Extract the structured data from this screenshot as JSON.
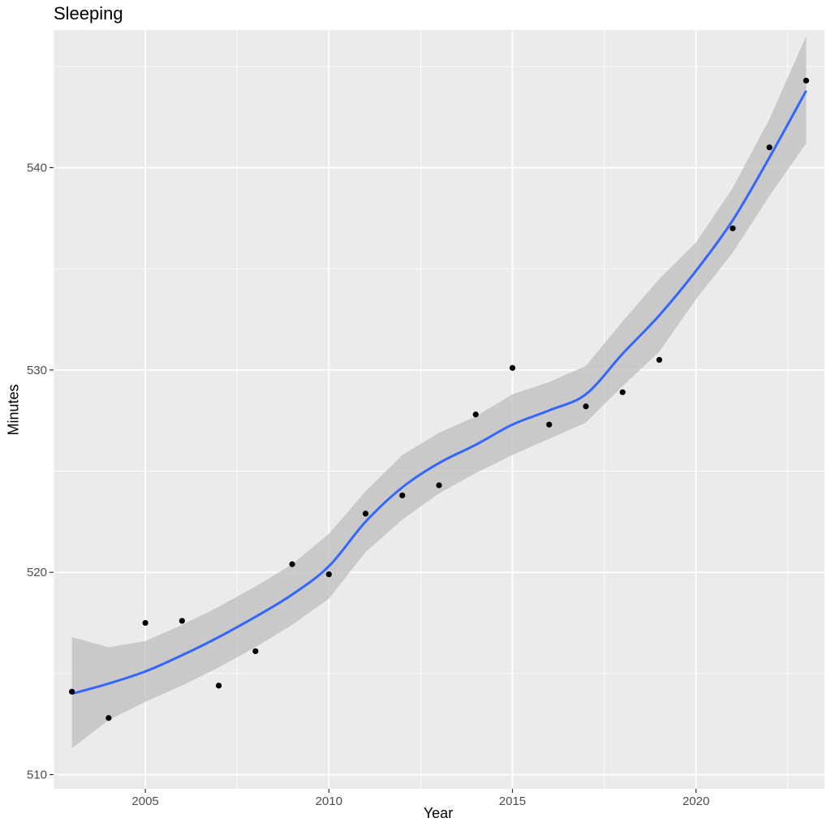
{
  "chart_data": {
    "type": "scatter",
    "title": "Sleeping",
    "xlabel": "Year",
    "ylabel": "Minutes",
    "xlim": [
      2002.5,
      2023.5
    ],
    "ylim": [
      509.3,
      546.8
    ],
    "x_ticks": [
      2005,
      2010,
      2015,
      2020
    ],
    "y_ticks": [
      510,
      520,
      530,
      540
    ],
    "grid": true,
    "legend": "none",
    "colors": {
      "panel": "#ebebeb",
      "grid": "#ffffff",
      "points": "#000000",
      "smooth_line": "#3366ff",
      "confidence_band": "#bdbdbd"
    },
    "points": [
      {
        "x": 2003,
        "y": 514.1
      },
      {
        "x": 2004,
        "y": 512.8
      },
      {
        "x": 2005,
        "y": 517.5
      },
      {
        "x": 2006,
        "y": 517.6
      },
      {
        "x": 2007,
        "y": 514.4
      },
      {
        "x": 2008,
        "y": 516.1
      },
      {
        "x": 2009,
        "y": 520.4
      },
      {
        "x": 2010,
        "y": 519.9
      },
      {
        "x": 2011,
        "y": 522.9
      },
      {
        "x": 2012,
        "y": 523.8
      },
      {
        "x": 2013,
        "y": 524.3
      },
      {
        "x": 2014,
        "y": 527.8
      },
      {
        "x": 2015,
        "y": 530.1
      },
      {
        "x": 2016,
        "y": 527.3
      },
      {
        "x": 2017,
        "y": 528.2
      },
      {
        "x": 2018,
        "y": 528.9
      },
      {
        "x": 2019,
        "y": 530.5
      },
      {
        "x": 2021,
        "y": 537.0
      },
      {
        "x": 2022,
        "y": 541.0
      },
      {
        "x": 2023,
        "y": 544.3
      }
    ],
    "smooth": {
      "x": [
        2003,
        2004,
        2005,
        2006,
        2007,
        2008,
        2009,
        2010,
        2011,
        2012,
        2013,
        2014,
        2015,
        2016,
        2017,
        2018,
        2019,
        2020,
        2021,
        2022,
        2023
      ],
      "y": [
        514.0,
        514.5,
        515.1,
        515.9,
        516.8,
        517.8,
        518.9,
        520.3,
        522.5,
        524.2,
        525.4,
        526.3,
        527.3,
        528.0,
        528.8,
        530.8,
        532.7,
        534.9,
        537.4,
        540.5,
        543.8
      ],
      "lower": [
        511.3,
        512.7,
        513.6,
        514.4,
        515.3,
        516.3,
        517.4,
        518.7,
        521.0,
        522.6,
        523.9,
        524.9,
        525.8,
        526.6,
        527.4,
        529.2,
        530.9,
        533.5,
        535.8,
        538.6,
        541.2
      ],
      "upper": [
        516.8,
        516.3,
        516.6,
        517.4,
        518.3,
        519.3,
        520.4,
        521.9,
        524.0,
        525.8,
        526.9,
        527.7,
        528.8,
        529.4,
        530.2,
        532.4,
        534.5,
        536.3,
        539.0,
        542.4,
        546.5
      ]
    }
  }
}
